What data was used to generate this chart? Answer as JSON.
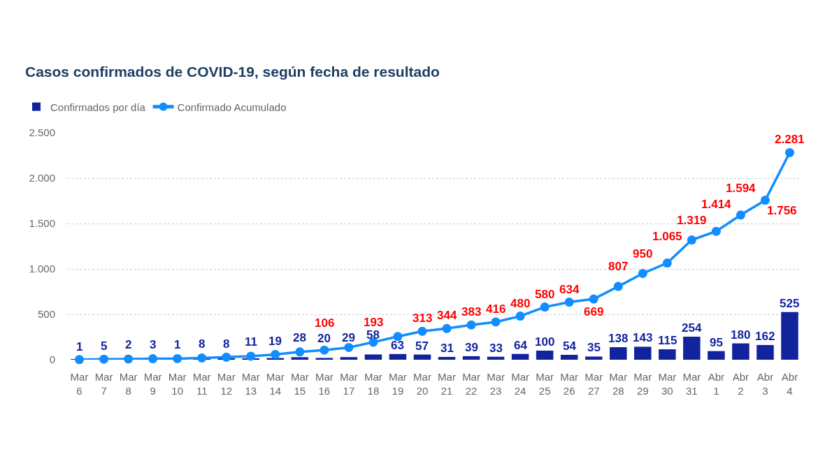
{
  "chart_data": {
    "type": "bar",
    "title": "Casos confirmados de COVID-19, según fecha de resultado",
    "categories": [
      "Mar 6",
      "Mar 7",
      "Mar 8",
      "Mar 9",
      "Mar 10",
      "Mar 11",
      "Mar 12",
      "Mar 13",
      "Mar 14",
      "Mar 15",
      "Mar 16",
      "Mar 17",
      "Mar 18",
      "Mar 19",
      "Mar 20",
      "Mar 21",
      "Mar 22",
      "Mar 23",
      "Mar 24",
      "Mar 25",
      "Mar 26",
      "Mar 27",
      "Mar 28",
      "Mar 29",
      "Mar 30",
      "Mar 31",
      "Abr 1",
      "Abr 2",
      "Abr 3",
      "Abr 4"
    ],
    "series": [
      {
        "name": "Confirmados por día",
        "color": "#12239e",
        "values": [
          1,
          5,
          2,
          3,
          1,
          8,
          8,
          11,
          19,
          28,
          20,
          29,
          58,
          63,
          57,
          31,
          39,
          33,
          64,
          100,
          54,
          35,
          138,
          143,
          115,
          254,
          95,
          180,
          162,
          525
        ],
        "value_labels": [
          "1",
          "5",
          "2",
          "3",
          "1",
          "8",
          "8",
          "11",
          "19",
          "28",
          "20",
          "29",
          "58",
          "63",
          "57",
          "31",
          "39",
          "33",
          "64",
          "100",
          "54",
          "35",
          "138",
          "143",
          "115",
          "254",
          "95",
          "180",
          "162",
          "525"
        ]
      },
      {
        "name": "Confirmado Acumulado",
        "type": "line",
        "color": "#118dff",
        "values": [
          1,
          6,
          8,
          11,
          12,
          20,
          28,
          39,
          58,
          86,
          106,
          135,
          193,
          256,
          313,
          344,
          383,
          416,
          480,
          580,
          634,
          669,
          807,
          950,
          1065,
          1319,
          1414,
          1594,
          1756,
          2281
        ],
        "value_labels": [
          null,
          null,
          null,
          null,
          null,
          null,
          null,
          null,
          null,
          null,
          "106",
          null,
          "193",
          null,
          "313",
          "344",
          "383",
          "416",
          "480",
          "580",
          "634",
          "669",
          "807",
          "950",
          "1.065",
          "1.319",
          "1.414",
          "1.594",
          "1.756",
          "2.281"
        ]
      }
    ],
    "ylim": [
      0,
      2500
    ],
    "yticks": [
      0,
      500,
      {
        "value": 1000,
        "label": "1.000"
      },
      {
        "value": 1500,
        "label": "1.500"
      },
      {
        "value": 2000,
        "label": "2.000"
      },
      {
        "value": 2500,
        "label": "2.500"
      }
    ],
    "grid": "y",
    "legend": "top left",
    "marker": "circle",
    "line_style": "solid"
  }
}
